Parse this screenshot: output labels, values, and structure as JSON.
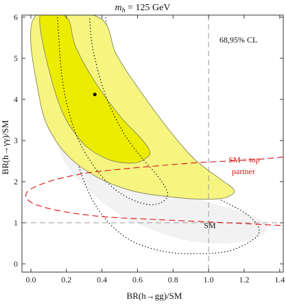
{
  "chart_data": {
    "type": "scatter",
    "title": "m_h = 125 GeV",
    "title_parts": {
      "m": "m",
      "sub": "h",
      "rest": " = 125 GeV"
    },
    "xlabel": "BR(h→gg)/SM",
    "ylabel": "BR(h→γγ)/SM",
    "xlim": [
      -0.05,
      1.42
    ],
    "ylim": [
      -0.2,
      6.05
    ],
    "x_ticks": [
      0.0,
      0.2,
      0.4,
      0.6,
      0.8,
      1.0,
      1.2,
      1.4
    ],
    "x_tick_labels": [
      "0.0",
      "0.2",
      "0.4",
      "0.6",
      "0.8",
      "1.0",
      "1.2",
      "1.4"
    ],
    "y_ticks": [
      0,
      1,
      2,
      3,
      4,
      5,
      6
    ],
    "y_tick_labels": [
      "0",
      "1",
      "2",
      "3",
      "4",
      "5",
      "6"
    ],
    "grid": false,
    "colors": {
      "gray_region": "#f2f2f2",
      "outer_yellow": "#f5f580",
      "inner_yellow": "#ecec00",
      "contour_stroke": "#909060",
      "dotted": "#111111",
      "dashed_ref": "#999999",
      "sm_top": "#e02020"
    },
    "best_fit_point": {
      "x": 0.36,
      "y": 4.12
    },
    "reference_lines": {
      "x": 1.0,
      "y": 1.0
    },
    "regions": {
      "gray_band": [
        [
          0.05,
          6.0
        ],
        [
          0.08,
          4.3
        ],
        [
          0.12,
          3.3
        ],
        [
          0.2,
          2.4
        ],
        [
          0.35,
          1.7
        ],
        [
          0.5,
          1.2
        ],
        [
          0.7,
          0.8
        ],
        [
          0.9,
          0.55
        ],
        [
          1.1,
          0.5
        ],
        [
          1.27,
          0.62
        ],
        [
          1.33,
          0.85
        ],
        [
          1.3,
          1.05
        ],
        [
          1.2,
          1.25
        ],
        [
          1.0,
          1.5
        ],
        [
          0.8,
          1.85
        ],
        [
          0.68,
          2.3
        ],
        [
          0.55,
          3.1
        ],
        [
          0.45,
          4.1
        ],
        [
          0.4,
          5.0
        ],
        [
          0.37,
          6.0
        ]
      ],
      "outer_68": [
        [
          0.02,
          6.0
        ],
        [
          0.05,
          4.0
        ],
        [
          0.14,
          3.0
        ],
        [
          0.3,
          2.3
        ],
        [
          0.55,
          1.8
        ],
        [
          0.85,
          1.6
        ],
        [
          1.05,
          1.58
        ],
        [
          1.13,
          1.68
        ],
        [
          1.14,
          1.82
        ],
        [
          1.07,
          2.05
        ],
        [
          0.92,
          2.55
        ],
        [
          0.77,
          3.3
        ],
        [
          0.6,
          4.3
        ],
        [
          0.48,
          5.1
        ],
        [
          0.38,
          6.0
        ]
      ],
      "inner_95": [
        [
          0.05,
          6.0
        ],
        [
          0.15,
          4.0
        ],
        [
          0.28,
          3.0
        ],
        [
          0.43,
          2.55
        ],
        [
          0.57,
          2.45
        ],
        [
          0.64,
          2.55
        ],
        [
          0.67,
          2.72
        ],
        [
          0.62,
          3.05
        ],
        [
          0.5,
          3.6
        ],
        [
          0.35,
          4.5
        ],
        [
          0.25,
          5.3
        ],
        [
          0.2,
          6.0
        ]
      ],
      "dotted_left": [
        [
          0.15,
          6.0
        ],
        [
          0.18,
          4.4
        ],
        [
          0.25,
          3.2
        ],
        [
          0.35,
          2.4
        ],
        [
          0.45,
          1.9
        ],
        [
          0.55,
          1.6
        ],
        [
          0.65,
          1.45
        ],
        [
          0.73,
          1.48
        ],
        [
          0.77,
          1.7
        ],
        [
          0.72,
          2.1
        ],
        [
          0.62,
          2.6
        ],
        [
          0.52,
          3.2
        ],
        [
          0.42,
          4.1
        ],
        [
          0.35,
          5.2
        ],
        [
          0.33,
          6.0
        ]
      ],
      "dotted_right": [
        [
          0.2,
          6.0
        ],
        [
          0.18,
          4.5
        ],
        [
          0.22,
          3.2
        ],
        [
          0.3,
          2.0
        ],
        [
          0.4,
          1.2
        ],
        [
          0.55,
          0.6
        ],
        [
          0.75,
          0.3
        ],
        [
          0.95,
          0.25
        ],
        [
          1.12,
          0.32
        ],
        [
          1.26,
          0.62
        ],
        [
          1.28,
          0.9
        ],
        [
          1.2,
          1.25
        ],
        [
          1.05,
          1.6
        ],
        [
          0.9,
          2.0
        ],
        [
          0.75,
          2.6
        ],
        [
          0.62,
          3.4
        ],
        [
          0.52,
          4.3
        ],
        [
          0.45,
          5.2
        ],
        [
          0.42,
          6.0
        ]
      ],
      "sm_top_ellipse": [
        [
          1.42,
          2.6
        ],
        [
          1.3,
          2.55
        ],
        [
          1.1,
          2.5
        ],
        [
          0.9,
          2.45
        ],
        [
          0.7,
          2.38
        ],
        [
          0.5,
          2.3
        ],
        [
          0.3,
          2.2
        ],
        [
          0.1,
          2.0
        ],
        [
          -0.02,
          1.75
        ],
        [
          0.0,
          1.5
        ],
        [
          0.15,
          1.3
        ],
        [
          0.4,
          1.15
        ],
        [
          0.7,
          1.08
        ],
        [
          1.0,
          1.02
        ],
        [
          1.2,
          0.98
        ],
        [
          1.42,
          0.93
        ]
      ]
    },
    "annotations": {
      "cl_label": "68,95% CL",
      "sm_top_line1": "SM + top",
      "sm_top_line2": "partner",
      "sm_label": "SM"
    }
  }
}
